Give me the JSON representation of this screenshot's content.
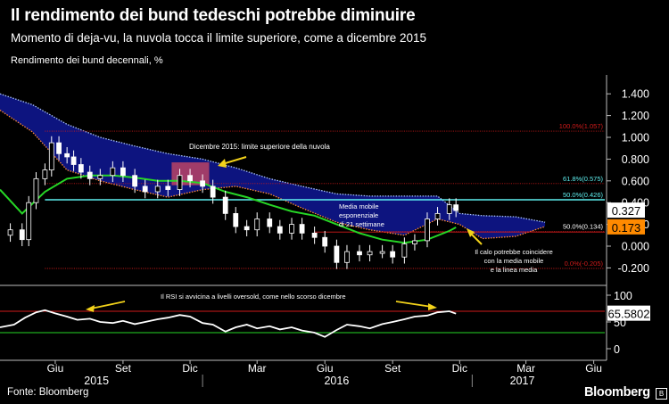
{
  "header": {
    "title": "Il rendimento dei bund tedeschi potrebbe diminuire",
    "subtitle": "Momento di deja-vu, la nuvola tocca il limite superiore, come a dicembre 2015",
    "ylabel": "Rendimento dei bund decennali, %"
  },
  "footer": {
    "source": "Fonte: Bloomberg",
    "brand": "Bloomberg",
    "brand_icon": "B"
  },
  "colors": {
    "cloud": "#0e1586",
    "cloud_edge_up": "#a9c4ff",
    "cloud_edge_down": "#ff8a3a",
    "ma": "#26d626",
    "fib": "#d11a1a",
    "cyan": "#5ff0f0",
    "yellow_arrow": "#f2d21a",
    "highlight_box": "#d24a62"
  },
  "chart_data": [
    {
      "type": "line",
      "title": "Rendimento dei bund decennali",
      "ylim": [
        -0.3,
        1.5
      ],
      "yticks": [
        "1.400",
        "1.200",
        "1.000",
        "0.800",
        "0.600",
        "0.400",
        "0.200",
        "0.000",
        "-0.200"
      ],
      "ytick_values": [
        1.4,
        1.2,
        1.0,
        0.8,
        0.6,
        0.4,
        0.2,
        0.0,
        -0.2
      ],
      "x_months": [
        "Giu",
        "Set",
        "Dic",
        "Mar",
        "Giu",
        "Set",
        "Dic",
        "Mar",
        "Giu"
      ],
      "x_years": [
        "2015",
        "2016",
        "2017"
      ],
      "x_range": [
        "2015-04-01",
        "2017-06-30"
      ],
      "series": [
        {
          "name": "Rendimento",
          "style": "candlestick",
          "dates": [
            "2015-04-15",
            "2015-05-01",
            "2015-05-10",
            "2015-05-20",
            "2015-06-01",
            "2015-06-10",
            "2015-06-20",
            "2015-07-01",
            "2015-07-10",
            "2015-07-20",
            "2015-08-01",
            "2015-08-15",
            "2015-09-01",
            "2015-09-15",
            "2015-10-01",
            "2015-10-15",
            "2015-11-01",
            "2015-11-15",
            "2015-12-01",
            "2015-12-15",
            "2016-01-01",
            "2016-01-15",
            "2016-02-01",
            "2016-02-15",
            "2016-03-01",
            "2016-03-15",
            "2016-04-01",
            "2016-04-15",
            "2016-05-01",
            "2016-05-15",
            "2016-06-01",
            "2016-06-15",
            "2016-07-01",
            "2016-07-15",
            "2016-08-01",
            "2016-08-15",
            "2016-09-01",
            "2016-09-15",
            "2016-10-01",
            "2016-10-15",
            "2016-11-01",
            "2016-11-15",
            "2016-12-01",
            "2016-12-10"
          ],
          "values": [
            0.15,
            0.06,
            0.4,
            0.62,
            0.7,
            0.95,
            0.85,
            0.82,
            0.75,
            0.68,
            0.62,
            0.65,
            0.72,
            0.65,
            0.55,
            0.5,
            0.55,
            0.52,
            0.65,
            0.6,
            0.55,
            0.45,
            0.3,
            0.18,
            0.15,
            0.25,
            0.18,
            0.12,
            0.2,
            0.12,
            0.08,
            0.0,
            -0.15,
            -0.05,
            -0.08,
            -0.05,
            -0.05,
            -0.1,
            0.02,
            0.05,
            0.25,
            0.3,
            0.38,
            0.327
          ]
        },
        {
          "name": "Media mobile esponenziale di 21 settimane",
          "dates": [
            "2015-04-01",
            "2015-05-01",
            "2015-06-01",
            "2015-07-01",
            "2015-08-01",
            "2015-09-01",
            "2015-10-01",
            "2015-11-01",
            "2015-12-01",
            "2016-01-01",
            "2016-02-01",
            "2016-03-01",
            "2016-04-01",
            "2016-05-01",
            "2016-06-01",
            "2016-07-01",
            "2016-08-01",
            "2016-09-01",
            "2016-10-01",
            "2016-11-01",
            "2016-12-01",
            "2016-12-10"
          ],
          "values": [
            0.52,
            0.3,
            0.5,
            0.62,
            0.65,
            0.65,
            0.63,
            0.6,
            0.6,
            0.58,
            0.5,
            0.45,
            0.38,
            0.32,
            0.28,
            0.2,
            0.12,
            0.06,
            0.03,
            0.06,
            0.14,
            0.173
          ]
        }
      ],
      "cloud": {
        "dates": [
          "2015-04-01",
          "2015-05-15",
          "2015-07-01",
          "2015-08-15",
          "2015-10-01",
          "2015-11-15",
          "2016-01-01",
          "2016-02-15",
          "2016-04-01",
          "2016-05-15",
          "2016-07-01",
          "2016-08-15",
          "2016-10-01",
          "2016-11-15",
          "2016-12-15",
          "2017-01-15",
          "2017-03-01",
          "2017-04-10"
        ],
        "upper": [
          1.4,
          1.3,
          1.12,
          1.0,
          0.92,
          0.85,
          0.8,
          0.72,
          0.62,
          0.55,
          0.48,
          0.46,
          0.46,
          0.46,
          0.3,
          0.28,
          0.27,
          0.22
        ],
        "lower": [
          1.25,
          1.05,
          0.7,
          0.6,
          0.52,
          0.45,
          0.52,
          0.55,
          0.48,
          0.35,
          0.22,
          0.15,
          0.1,
          0.25,
          0.2,
          0.07,
          0.09,
          0.18
        ]
      },
      "fibonacci": [
        {
          "label": "100.0%(1.057)",
          "value": 1.057
        },
        {
          "label": "61.8%(0.575)",
          "value": 0.575
        },
        {
          "label": "50.0%(0.426)",
          "value": 0.426
        },
        {
          "label": "50.0%(0.134)",
          "value": 0.134
        },
        {
          "label": "0.0%(-0.205)",
          "value": -0.205
        }
      ],
      "last_value_labels": [
        {
          "label": "0.327",
          "value": 0.327,
          "style": "white"
        },
        {
          "label": "0.173",
          "value": 0.173,
          "style": "orange"
        }
      ],
      "annotations": [
        {
          "text": "Dicembre 2015: limite superiore della nuvola"
        },
        {
          "text": "Media mobile",
          "text2": "esponenziale",
          "text3": "di 21 settimane"
        },
        {
          "text": "Il calo potrebbe coincidere",
          "text2": "con la media mobile",
          "text3": "e la linea media"
        }
      ]
    },
    {
      "type": "line",
      "title": "RSI",
      "ylim": [
        0,
        100
      ],
      "yticks": [
        "100",
        "50",
        "0"
      ],
      "ytick_values": [
        100,
        50,
        0
      ],
      "levels": [
        70,
        30
      ],
      "series": [
        {
          "name": "RSI",
          "dates": [
            "2015-04-01",
            "2015-04-20",
            "2015-05-05",
            "2015-05-20",
            "2015-06-01",
            "2015-06-15",
            "2015-07-01",
            "2015-07-15",
            "2015-08-01",
            "2015-08-15",
            "2015-09-01",
            "2015-09-15",
            "2015-10-01",
            "2015-10-15",
            "2015-11-01",
            "2015-11-15",
            "2015-12-01",
            "2015-12-15",
            "2016-01-01",
            "2016-01-15",
            "2016-02-01",
            "2016-02-15",
            "2016-03-01",
            "2016-03-15",
            "2016-04-01",
            "2016-04-15",
            "2016-05-01",
            "2016-05-15",
            "2016-06-01",
            "2016-06-15",
            "2016-07-01",
            "2016-07-15",
            "2016-08-01",
            "2016-08-15",
            "2016-09-01",
            "2016-09-15",
            "2016-10-01",
            "2016-10-15",
            "2016-11-01",
            "2016-11-15",
            "2016-12-01",
            "2016-12-10"
          ],
          "values": [
            40,
            45,
            58,
            68,
            72,
            66,
            60,
            54,
            56,
            50,
            48,
            52,
            46,
            50,
            55,
            58,
            63,
            60,
            48,
            45,
            32,
            40,
            45,
            38,
            42,
            36,
            40,
            34,
            30,
            22,
            35,
            45,
            42,
            38,
            46,
            50,
            55,
            60,
            62,
            68,
            70,
            65.5802
          ]
        }
      ],
      "last_value_labels": [
        {
          "label": "65.5802",
          "value": 65.5802,
          "style": "white"
        }
      ],
      "annotations": [
        {
          "text": "Il RSI si avvicina a livelli oversold, come nello scorso dicembre"
        }
      ]
    }
  ]
}
